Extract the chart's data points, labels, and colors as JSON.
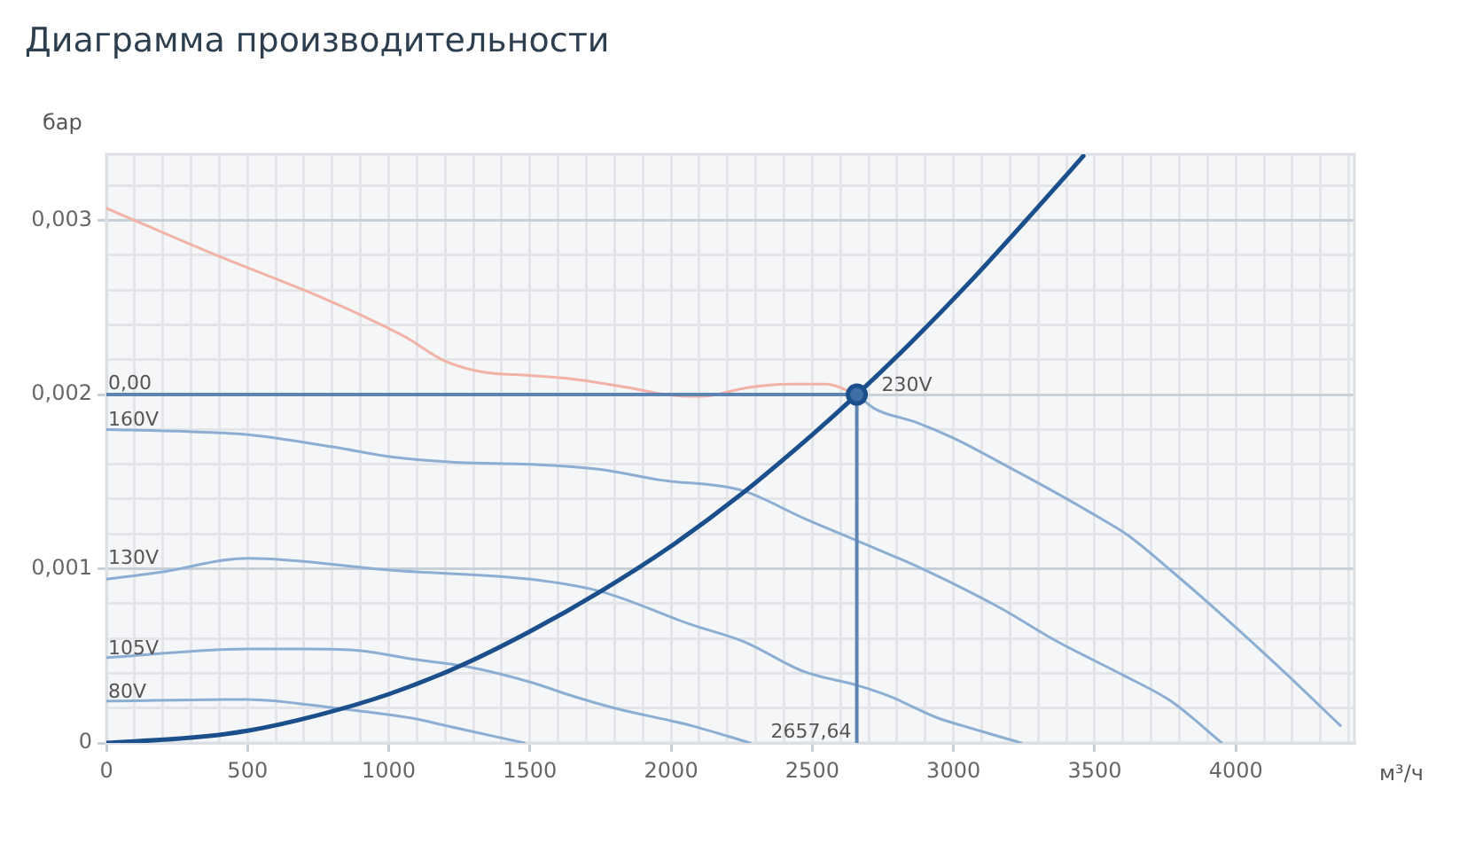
{
  "chart_data": {
    "type": "line",
    "title": "Диаграмма производительности",
    "xlabel": "м³/ч",
    "ylabel": "бар",
    "xlim": [
      0,
      4420
    ],
    "xticks": [
      0,
      {
        "value": 100,
        "label": null
      },
      {
        "value": 200,
        "label": null
      },
      {
        "value": 300,
        "label": null
      },
      {
        "value": 400,
        "label": null
      },
      500,
      {
        "value": 600,
        "label": null
      },
      {
        "value": 700,
        "label": null
      },
      {
        "value": 800,
        "label": null
      },
      {
        "value": 900,
        "label": null
      },
      1000,
      {
        "value": 1100,
        "label": null
      },
      {
        "value": 1200,
        "label": null
      },
      {
        "value": 1300,
        "label": null
      },
      {
        "value": 1400,
        "label": null
      },
      1500,
      {
        "value": 1600,
        "label": null
      },
      {
        "value": 1700,
        "label": null
      },
      {
        "value": 1800,
        "label": null
      },
      {
        "value": 1900,
        "label": null
      },
      2000,
      {
        "value": 2100,
        "label": null
      },
      {
        "value": 2200,
        "label": null
      },
      {
        "value": 2300,
        "label": null
      },
      {
        "value": 2400,
        "label": null
      },
      2500,
      {
        "value": 2600,
        "label": null
      },
      {
        "value": 2700,
        "label": null
      },
      {
        "value": 2800,
        "label": null
      },
      {
        "value": 2900,
        "label": null
      },
      3000,
      {
        "value": 3100,
        "label": null
      },
      {
        "value": 3200,
        "label": null
      },
      {
        "value": 3300,
        "label": null
      },
      {
        "value": 3400,
        "label": null
      },
      3500,
      {
        "value": 3600,
        "label": null
      },
      {
        "value": 3700,
        "label": null
      },
      {
        "value": 3800,
        "label": null
      },
      {
        "value": 3900,
        "label": null
      },
      4000,
      {
        "value": 4100,
        "label": null
      },
      {
        "value": 4200,
        "label": null
      },
      {
        "value": 4300,
        "label": null
      },
      {
        "value": 4400,
        "label": null
      }
    ],
    "ylim": [
      0,
      0.00338
    ],
    "yticks": [
      0,
      {
        "value": 0.0002,
        "label": null
      },
      {
        "value": 0.0004,
        "label": null
      },
      {
        "value": 0.0006,
        "label": null
      },
      {
        "value": 0.0008,
        "label": null
      },
      {
        "value": 0.001,
        "label": "0,001"
      },
      {
        "value": 0.0012,
        "label": null
      },
      {
        "value": 0.0014,
        "label": null
      },
      {
        "value": 0.0016,
        "label": null
      },
      {
        "value": 0.0018,
        "label": null
      },
      {
        "value": 0.002,
        "label": "0,002"
      },
      {
        "value": 0.0022,
        "label": null
      },
      {
        "value": 0.0024,
        "label": null
      },
      {
        "value": 0.0026,
        "label": null
      },
      {
        "value": 0.0028,
        "label": null
      },
      {
        "value": 0.003,
        "label": "0,003"
      },
      {
        "value": 0.0032,
        "label": null
      }
    ],
    "grid": true,
    "series": [
      {
        "color": "#f2b2a6",
        "x": [
          0,
          390,
          700,
          910,
          1060,
          1190,
          1330,
          1500,
          1650,
          1850,
          1980,
          2110,
          2270,
          2420,
          2550,
          2657.64
        ],
        "values": [
          0.00307,
          0.0028,
          0.0026,
          0.00245,
          0.00233,
          0.0022,
          0.00213,
          0.00211,
          0.00209,
          0.00204,
          0.002,
          0.00199,
          0.00204,
          0.00206,
          0.00206,
          0.002
        ]
      },
      {
        "name": "230V",
        "color": "#8caed3",
        "x": [
          2657.64,
          2720,
          2870,
          3000,
          3200,
          3370,
          3520,
          3620,
          3770,
          3940,
          4150,
          4370
        ],
        "values": [
          0.002,
          0.00192,
          0.00184,
          0.00175,
          0.00158,
          0.00143,
          0.00129,
          0.00119,
          0.00099,
          0.00075,
          0.00044,
          0.0001
        ]
      },
      {
        "name": "160V",
        "color": "#8caed3",
        "x": [
          0,
          250,
          500,
          800,
          1020,
          1250,
          1500,
          1750,
          1960,
          2250,
          2470,
          2660,
          2890,
          3160,
          3370,
          3600,
          3770,
          3950
        ],
        "values": [
          0.0018,
          0.00179,
          0.00177,
          0.0017,
          0.00164,
          0.00161,
          0.0016,
          0.00157,
          0.00151,
          0.00145,
          0.00129,
          0.00116,
          0.001,
          0.00078,
          0.00058,
          0.00039,
          0.00024,
          0
        ]
      },
      {
        "name": "130V",
        "color": "#8caed3",
        "x": [
          0,
          190,
          500,
          1020,
          1500,
          1750,
          2070,
          2260,
          2470,
          2660,
          2770,
          2950,
          3030,
          3240
        ],
        "values": [
          0.00094,
          0.00098,
          0.00106,
          0.00099,
          0.00094,
          0.00087,
          0.00068,
          0.00058,
          0.00041,
          0.00033,
          0.00027,
          0.00014,
          0.0001,
          0
        ]
      },
      {
        "name": "105V",
        "color": "#8caed3",
        "x": [
          0,
          500,
          700,
          900,
          1090,
          1270,
          1500,
          1650,
          1800,
          2070,
          2280
        ],
        "values": [
          0.00049,
          0.00054,
          0.00054,
          0.00053,
          0.00048,
          0.00044,
          0.00035,
          0.00027,
          0.0002,
          0.0001,
          0
        ]
      },
      {
        "name": "80V",
        "color": "#8caed3",
        "x": [
          0,
          500,
          810,
          1090,
          1200,
          1480
        ],
        "values": [
          0.00024,
          0.00025,
          0.0002,
          0.00014,
          0.0001,
          0
        ]
      },
      {
        "color": "#1b4f8c",
        "x": [
          0,
          300,
          500,
          750,
          1000,
          1250,
          1500,
          1750,
          2000,
          2250,
          2500,
          2657.64,
          2850,
          3060,
          3290,
          3460
        ],
        "values": [
          0,
          3e-05,
          7e-05,
          0.00016,
          0.00028,
          0.00044,
          0.00064,
          0.00087,
          0.00113,
          0.00143,
          0.00177,
          0.002,
          0.0023,
          0.00265,
          0.00306,
          0.00337
        ]
      },
      {
        "color": "#5d84b3",
        "x": [
          0,
          2657.64
        ],
        "values": [
          0.002,
          0.002
        ]
      },
      {
        "color": "#5d84b3",
        "x": [
          2657.64,
          2657.64
        ],
        "values": [
          0,
          0.002
        ]
      },
      {
        "type": "scatter",
        "marker": "circle",
        "color": "#1b4f8c",
        "x": [
          2657.64
        ],
        "values": [
          0.002
        ]
      }
    ],
    "annotations": [
      {
        "text": "0,00",
        "x": 0,
        "y": 0.002
      },
      {
        "text": "2657,64",
        "x": 2657.64,
        "y": 0
      }
    ]
  }
}
